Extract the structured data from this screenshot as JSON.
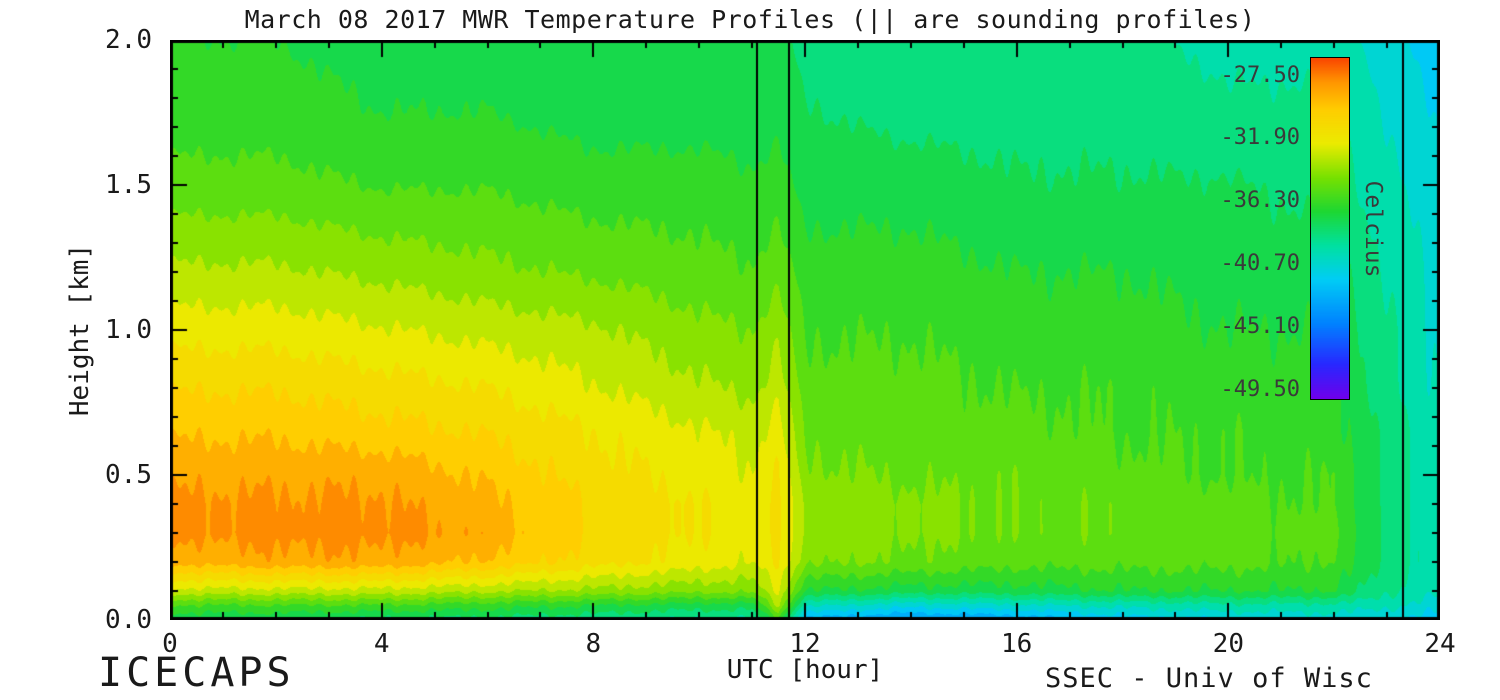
{
  "footer": {
    "left": "ICECAPS",
    "right": "SSEC - Univ of Wisc"
  },
  "chart_data": {
    "type": "heatmap",
    "title": "March 08 2017 MWR Temperature Profiles (|| are sounding profiles)",
    "xlabel": "UTC [hour]",
    "ylabel": "Height [km]",
    "colorbar_label": "Celcius",
    "xlim": [
      0,
      24
    ],
    "ylim": [
      0.0,
      2.0
    ],
    "x_major_ticks": [
      0,
      4,
      8,
      12,
      16,
      20,
      24
    ],
    "x_tick_labels": [
      "0",
      "4",
      "8",
      "12",
      "16",
      "20",
      "24"
    ],
    "x_minor_step": 1,
    "y_major_ticks": [
      0.0,
      0.5,
      1.0,
      1.5,
      2.0
    ],
    "y_tick_labels": [
      "0.0",
      "0.5",
      "1.0",
      "1.5",
      "2.0"
    ],
    "y_minor_step": 0.1,
    "colorbar_ticks": [
      -27.5,
      -31.9,
      -36.3,
      -40.7,
      -45.1,
      -49.5
    ],
    "colorbar_tick_labels": [
      "-27.50",
      "-31.90",
      "-36.30",
      "-40.70",
      "-45.10",
      "-49.50"
    ],
    "colorbar_domain": [
      -50.2,
      -26.2
    ],
    "contour_step": 1.1,
    "sounding_lines_hours": [
      11.1,
      11.7,
      23.3
    ],
    "grid_on": false,
    "colormap_stops": [
      [
        0.0,
        "#6e00eb"
      ],
      [
        0.1,
        "#2828ff"
      ],
      [
        0.22,
        "#0082ff"
      ],
      [
        0.35,
        "#00cdf5"
      ],
      [
        0.45,
        "#00e1a0"
      ],
      [
        0.55,
        "#1ed732"
      ],
      [
        0.65,
        "#78e100"
      ],
      [
        0.75,
        "#ebeb00"
      ],
      [
        0.85,
        "#ffcd00"
      ],
      [
        0.93,
        "#ff9600"
      ],
      [
        1.0,
        "#fa4600"
      ]
    ],
    "x": [
      0,
      2,
      4,
      6,
      8,
      10,
      11,
      11.5,
      12,
      14,
      16,
      18,
      20,
      22,
      23,
      24
    ],
    "y": [
      0.0,
      0.05,
      0.1,
      0.2,
      0.3,
      0.4,
      0.5,
      0.65,
      0.8,
      1.0,
      1.2,
      1.5,
      1.75,
      2.0
    ],
    "values": [
      [
        -38,
        -38,
        -38.5,
        -38.5,
        -39,
        -39.5,
        -39.5,
        -36.5,
        -43,
        -44,
        -43.5,
        -42,
        -41.5,
        -41,
        -41.5,
        -42
      ],
      [
        -36,
        -36,
        -36,
        -36.5,
        -37,
        -37.5,
        -37.5,
        -33.5,
        -40,
        -41,
        -40.5,
        -40,
        -39.5,
        -39.5,
        -40,
        -41
      ],
      [
        -33,
        -33,
        -33,
        -33.5,
        -34,
        -34.5,
        -34.5,
        -32.5,
        -37,
        -37.5,
        -37.5,
        -37,
        -37,
        -37,
        -39,
        -40
      ],
      [
        -29,
        -28.5,
        -28.5,
        -29.5,
        -31,
        -32,
        -32.5,
        -31.5,
        -34.5,
        -35,
        -35.5,
        -35.5,
        -35.5,
        -36,
        -38.5,
        -40
      ],
      [
        -28,
        -27.8,
        -27.8,
        -28.5,
        -30.5,
        -31.5,
        -32,
        -31.2,
        -34,
        -34.5,
        -35,
        -35,
        -35.5,
        -35.5,
        -38.5,
        -40
      ],
      [
        -28,
        -28,
        -28,
        -29,
        -30.5,
        -31.5,
        -32,
        -31.2,
        -34,
        -34.5,
        -35,
        -35,
        -35.5,
        -36,
        -38.5,
        -40
      ],
      [
        -28.5,
        -28.5,
        -28.5,
        -29.5,
        -31,
        -32,
        -32.5,
        -31.5,
        -34.5,
        -35,
        -35,
        -35.5,
        -36,
        -36,
        -38.5,
        -40
      ],
      [
        -29.5,
        -29.5,
        -30,
        -30.5,
        -31.5,
        -32.5,
        -33,
        -32,
        -35,
        -35.5,
        -35.5,
        -36,
        -36,
        -36.5,
        -38.5,
        -40
      ],
      [
        -30.5,
        -30.5,
        -31,
        -31.5,
        -32.5,
        -33.5,
        -34,
        -33,
        -35.5,
        -35.5,
        -36,
        -36,
        -36.5,
        -36.5,
        -39,
        -40.3
      ],
      [
        -32,
        -32,
        -32.5,
        -33,
        -33.5,
        -34.5,
        -34.8,
        -34,
        -36,
        -36,
        -36.5,
        -36.5,
        -37,
        -37,
        -39,
        -40.5
      ],
      [
        -33.5,
        -33.5,
        -34,
        -34.5,
        -35,
        -35.5,
        -35.8,
        -35.2,
        -36.5,
        -36.5,
        -37,
        -37,
        -37.5,
        -37.5,
        -39.5,
        -40.5
      ],
      [
        -35.5,
        -35.5,
        -36,
        -36,
        -36.5,
        -36.5,
        -36.8,
        -36.5,
        -37.5,
        -37.5,
        -38,
        -38,
        -38,
        -38.5,
        -40,
        -41
      ],
      [
        -36.5,
        -36.5,
        -37,
        -37,
        -37.5,
        -37.5,
        -37.6,
        -37.4,
        -38,
        -38.5,
        -38.5,
        -38.5,
        -39,
        -39,
        -40.5,
        -41.5
      ],
      [
        -37,
        -37,
        -37.5,
        -37.5,
        -38,
        -38,
        -38,
        -37.8,
        -38.5,
        -39,
        -39,
        -39,
        -39.5,
        -39.5,
        -41,
        -42
      ]
    ]
  }
}
